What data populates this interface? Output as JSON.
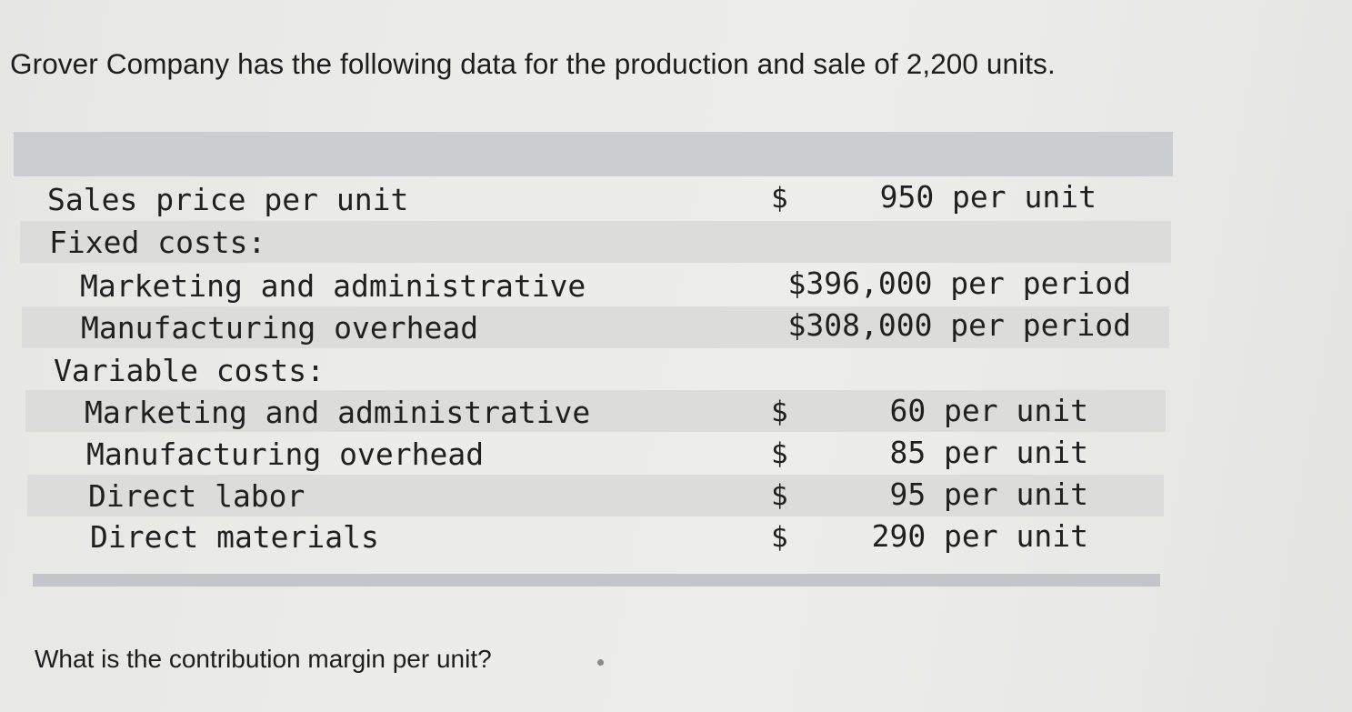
{
  "problem": {
    "title": "Grover Company has the following data for the production and sale of 2,200 units."
  },
  "table": {
    "rows": [
      {
        "label": "Sales price per unit",
        "currency": "$",
        "amount": "950 per unit"
      },
      {
        "label": "Fixed costs:",
        "currency": "",
        "amount": ""
      },
      {
        "label": "Marketing and administrative",
        "currency": "",
        "amount": "$396,000 per period"
      },
      {
        "label": "Manufacturing overhead",
        "currency": "",
        "amount": "$308,000 per period"
      },
      {
        "label": "Variable costs:",
        "currency": "",
        "amount": ""
      },
      {
        "label": "Marketing and administrative",
        "currency": "$",
        "amount": "60 per unit"
      },
      {
        "label": "Manufacturing overhead",
        "currency": "$",
        "amount": "85 per unit"
      },
      {
        "label": "Direct labor",
        "currency": "$",
        "amount": "95 per unit"
      },
      {
        "label": "Direct materials",
        "currency": "$",
        "amount": "290 per unit"
      }
    ]
  },
  "question": {
    "text": "What is the contribution margin per unit?"
  }
}
